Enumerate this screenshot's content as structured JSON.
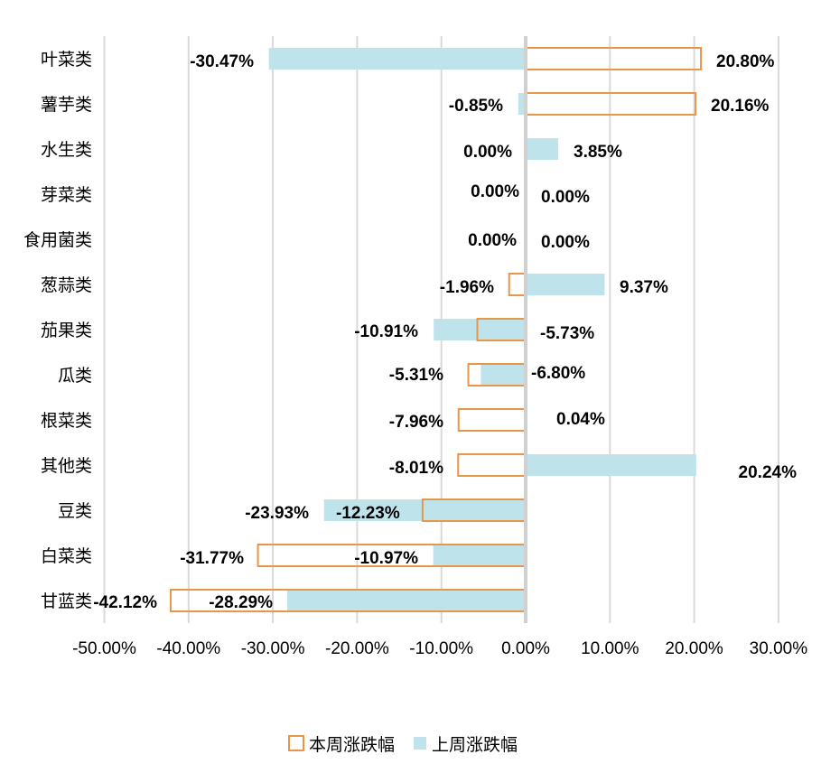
{
  "chart_data": {
    "type": "bar",
    "orientation": "horizontal",
    "categories": [
      "叶菜类",
      "薯芋类",
      "水生类",
      "芽菜类",
      "食用菌类",
      "葱蒜类",
      "茄果类",
      "瓜类",
      "根菜类",
      "其他类",
      "豆类",
      "白菜类",
      "甘蓝类"
    ],
    "series": [
      {
        "name": "本周涨跌幅",
        "style": "outline",
        "color": "#E8964A",
        "values": [
          20.8,
          20.16,
          0.0,
          0.0,
          0.0,
          -1.96,
          -5.73,
          -6.8,
          -7.96,
          -8.01,
          -12.23,
          -31.77,
          -42.12
        ],
        "labels": [
          "20.80%",
          "20.16%",
          "0.00%",
          "0.00%",
          "0.00%",
          "-1.96%",
          "-5.73%",
          "-6.80%",
          "-7.96%",
          "-8.01%",
          "-12.23%",
          "-31.77%",
          "-42.12%"
        ]
      },
      {
        "name": "上周涨跌幅",
        "style": "fill",
        "color": "#BFE3EB",
        "values": [
          -30.47,
          -0.85,
          3.85,
          0.0,
          0.0,
          9.37,
          -10.91,
          -5.31,
          0.04,
          20.24,
          -23.93,
          -10.97,
          -28.29
        ],
        "labels": [
          "-30.47%",
          "-0.85%",
          "3.85%",
          "0.00%",
          "0.00%",
          "9.37%",
          "-10.91%",
          "-5.31%",
          "0.04%",
          "20.24%",
          "-23.93%",
          "-10.97%",
          "-28.29%"
        ]
      }
    ],
    "xlim": [
      -50,
      30
    ],
    "xticks": [
      "-50.00%",
      "-40.00%",
      "-30.00%",
      "-20.00%",
      "-10.00%",
      "0.00%",
      "10.00%",
      "20.00%",
      "30.00%"
    ],
    "grid": true,
    "legend_position": "bottom",
    "title": "",
    "xlabel": "",
    "ylabel": ""
  }
}
